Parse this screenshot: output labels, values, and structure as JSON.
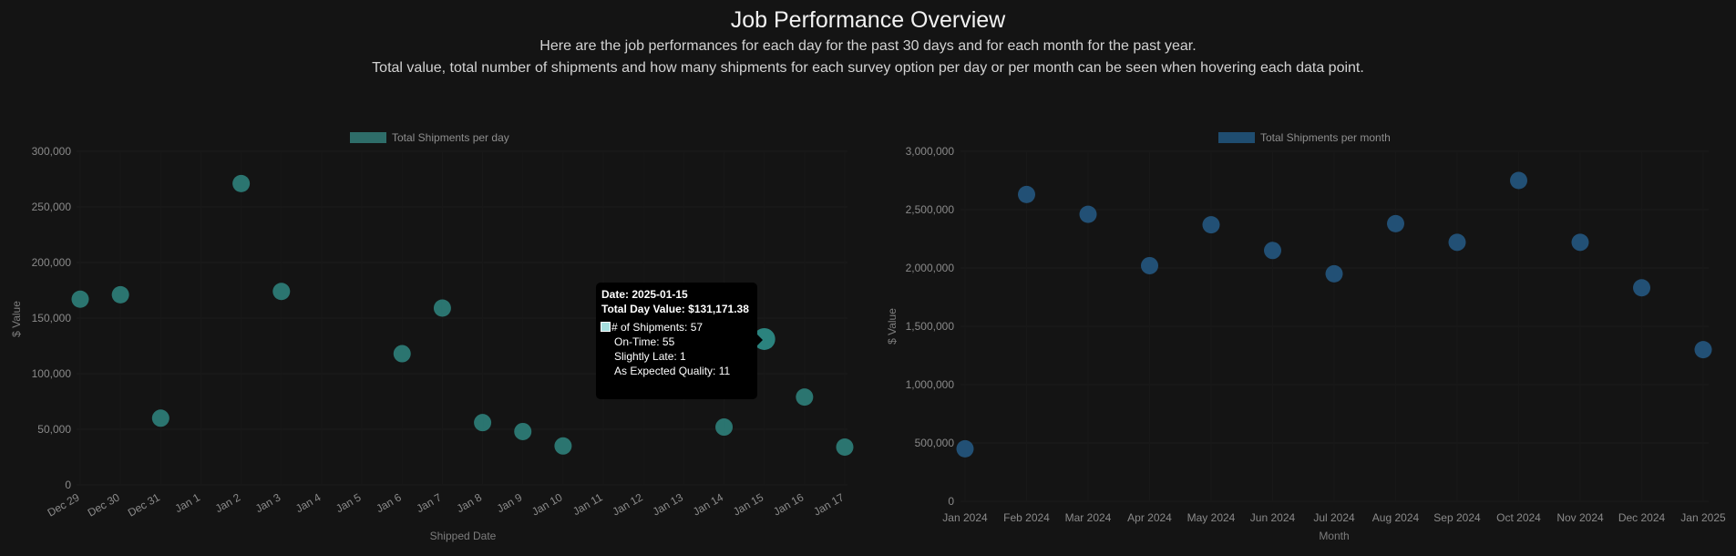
{
  "header": {
    "title": "Job Performance Overview",
    "subtitle1": "Here are the job performances for each day for the past 30 days and for each month for the past year.",
    "subtitle2": "Total value, total number of shipments and how many shipments for each survey option per day or per month can be seen when hovering each data point."
  },
  "colors": {
    "background": "#141414",
    "daily_point": "#2e7f7a",
    "monthly_point": "#24577f",
    "daily_legend": "#2e6d69",
    "monthly_legend": "#1f4d70"
  },
  "chart_data": [
    {
      "type": "scatter",
      "legend": "Total Shipments per day",
      "legend_position": "top",
      "xlabel": "Shipped Date",
      "ylabel": "$ Value",
      "ylim": [
        0,
        300000
      ],
      "yticks": [
        "0",
        "50,000",
        "100,000",
        "150,000",
        "200,000",
        "250,000",
        "300,000"
      ],
      "categories": [
        "Dec 29",
        "Dec 30",
        "Dec 31",
        "Jan 1",
        "Jan 2",
        "Jan 3",
        "Jan 4",
        "Jan 5",
        "Jan 6",
        "Jan 7",
        "Jan 8",
        "Jan 9",
        "Jan 10",
        "Jan 11",
        "Jan 12",
        "Jan 13",
        "Jan 14",
        "Jan 15",
        "Jan 16",
        "Jan 17"
      ],
      "points": [
        {
          "x": "Dec 29",
          "y": 167000
        },
        {
          "x": "Dec 30",
          "y": 171000
        },
        {
          "x": "Dec 31",
          "y": 60000
        },
        {
          "x": "Jan 2",
          "y": 271000
        },
        {
          "x": "Jan 3",
          "y": 174000
        },
        {
          "x": "Jan 6",
          "y": 118000
        },
        {
          "x": "Jan 7",
          "y": 159000
        },
        {
          "x": "Jan 8",
          "y": 56000
        },
        {
          "x": "Jan 9",
          "y": 48000
        },
        {
          "x": "Jan 10",
          "y": 35000
        },
        {
          "x": "Jan 14",
          "y": 52000
        },
        {
          "x": "Jan 15",
          "y": 131171.38
        },
        {
          "x": "Jan 16",
          "y": 79000
        },
        {
          "x": "Jan 17",
          "y": 34000
        }
      ],
      "grid": true
    },
    {
      "type": "scatter",
      "legend": "Total Shipments per month",
      "legend_position": "top",
      "xlabel": "Month",
      "ylabel": "$ Value",
      "ylim": [
        0,
        3000000
      ],
      "yticks": [
        "0",
        "500,000",
        "1,000,000",
        "1,500,000",
        "2,000,000",
        "2,500,000",
        "3,000,000"
      ],
      "categories": [
        "Jan 2024",
        "Feb 2024",
        "Mar 2024",
        "Apr 2024",
        "May 2024",
        "Jun 2024",
        "Jul 2024",
        "Aug 2024",
        "Sep 2024",
        "Oct 2024",
        "Nov 2024",
        "Dec 2024",
        "Jan 2025"
      ],
      "points": [
        {
          "x": "Jan 2024",
          "y": 450000
        },
        {
          "x": "Feb 2024",
          "y": 2630000
        },
        {
          "x": "Mar 2024",
          "y": 2460000
        },
        {
          "x": "Apr 2024",
          "y": 2020000
        },
        {
          "x": "May 2024",
          "y": 2370000
        },
        {
          "x": "Jun 2024",
          "y": 2150000
        },
        {
          "x": "Jul 2024",
          "y": 1950000
        },
        {
          "x": "Aug 2024",
          "y": 2380000
        },
        {
          "x": "Sep 2024",
          "y": 2220000
        },
        {
          "x": "Oct 2024",
          "y": 2750000
        },
        {
          "x": "Nov 2024",
          "y": 2220000
        },
        {
          "x": "Dec 2024",
          "y": 1830000
        },
        {
          "x": "Jan 2025",
          "y": 1300000
        }
      ],
      "grid": true
    }
  ],
  "tooltip": {
    "date": "Date: 2025-01-15",
    "total": "Total Day Value: $131,171.38",
    "shipments": "# of Shipments: 57",
    "on_time": "On-Time: 55",
    "slightly_late": "Slightly Late: 1",
    "quality": "As Expected Quality: 11"
  }
}
